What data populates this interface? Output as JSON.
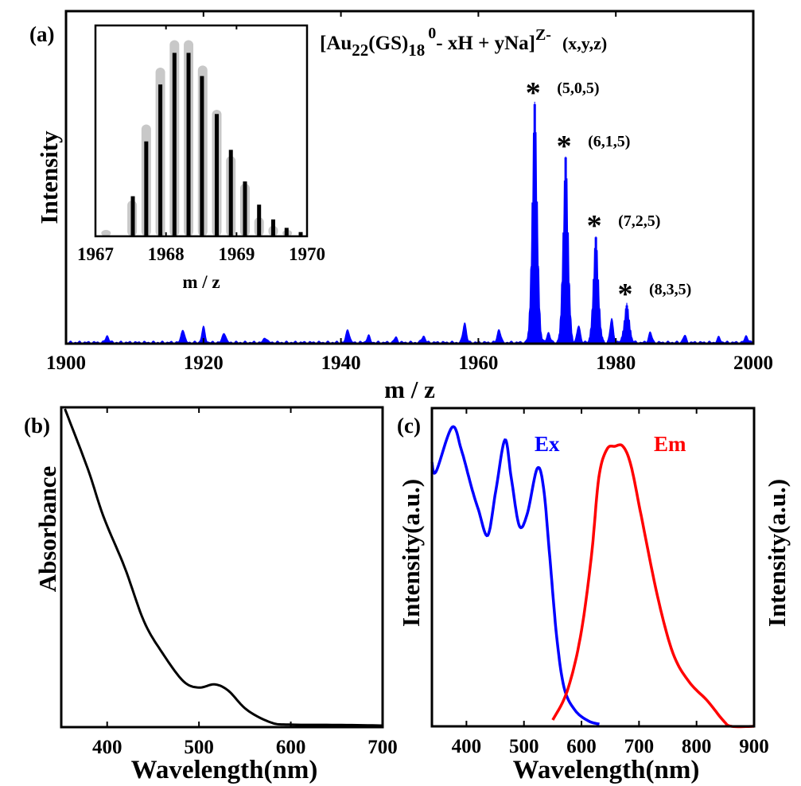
{
  "panels": {
    "a": "(a)",
    "b": "(b)",
    "c": "(c)"
  },
  "formula": {
    "open": "[Au",
    "sub1": "22",
    "mid": "(GS)",
    "sub2": "18",
    "sup1": "0",
    "rest": "- xH + yNa]",
    "sup2": "Z-",
    "tuple": "(x,y,z)"
  },
  "colors": {
    "ms": "#0000ff",
    "ex": "#0000ff",
    "em": "#ff0000",
    "inset_sim": "#c8c8c8",
    "inset_exp": "#000000",
    "abs": "#000000"
  },
  "chart_data": [
    {
      "id": "a",
      "type": "area",
      "xlabel": "m / z",
      "ylabel": "Intensity",
      "xlim": [
        1900,
        2000
      ],
      "xticks": [
        "1900",
        "1920",
        "1940",
        "1960",
        "1980",
        "2000"
      ],
      "grid": false,
      "peaks": [
        {
          "mz": 1968.2,
          "intensity": 0.72,
          "label": "(5,0,5)"
        },
        {
          "mz": 1972.7,
          "intensity": 0.56,
          "label": "(6,1,5)"
        },
        {
          "mz": 1977.1,
          "intensity": 0.32,
          "label": "(7,2,5)"
        },
        {
          "mz": 1981.6,
          "intensity": 0.115,
          "label": "(8,3,5)"
        }
      ],
      "minor_peaks": [
        {
          "mz": 1906,
          "intensity": 0.02
        },
        {
          "mz": 1917,
          "intensity": 0.04
        },
        {
          "mz": 1920,
          "intensity": 0.045
        },
        {
          "mz": 1923,
          "intensity": 0.03
        },
        {
          "mz": 1929,
          "intensity": 0.015
        },
        {
          "mz": 1941,
          "intensity": 0.04
        },
        {
          "mz": 1944,
          "intensity": 0.02
        },
        {
          "mz": 1948,
          "intensity": 0.015
        },
        {
          "mz": 1952,
          "intensity": 0.02
        },
        {
          "mz": 1958,
          "intensity": 0.06
        },
        {
          "mz": 1963,
          "intensity": 0.04
        },
        {
          "mz": 1970.2,
          "intensity": 0.03
        },
        {
          "mz": 1974.6,
          "intensity": 0.05
        },
        {
          "mz": 1979.4,
          "intensity": 0.07
        },
        {
          "mz": 1985,
          "intensity": 0.03
        },
        {
          "mz": 1990,
          "intensity": 0.02
        },
        {
          "mz": 1995,
          "intensity": 0.015
        },
        {
          "mz": 1999,
          "intensity": 0.02
        }
      ]
    },
    {
      "id": "a-inset",
      "type": "bar",
      "xlabel": "m / z",
      "xlim": [
        1967,
        1970
      ],
      "xticks": [
        "1967",
        "1968",
        "1969",
        "1970"
      ],
      "experimental": {
        "x": [
          1967.53,
          1967.72,
          1967.92,
          1968.12,
          1968.32,
          1968.51,
          1968.72,
          1968.92,
          1969.12,
          1969.32,
          1969.52,
          1969.71,
          1969.91
        ],
        "y": [
          0.19,
          0.45,
          0.72,
          0.87,
          0.87,
          0.76,
          0.58,
          0.41,
          0.26,
          0.15,
          0.08,
          0.04,
          0.02
        ]
      },
      "simulated": {
        "x": [
          1967.15,
          1967.52,
          1967.72,
          1967.92,
          1968.12,
          1968.32,
          1968.52,
          1968.72,
          1968.92,
          1969.12,
          1969.32,
          1969.52,
          1969.72
        ],
        "y": [
          0.03,
          0.17,
          0.53,
          0.8,
          0.93,
          0.93,
          0.81,
          0.6,
          0.38,
          0.25,
          0.09,
          0.05,
          0.03
        ]
      }
    },
    {
      "id": "b",
      "type": "line",
      "xlabel": "Wavelength(nm)",
      "ylabel": "Absorbance",
      "xlim": [
        350,
        700
      ],
      "xticks": [
        "400",
        "500",
        "600",
        "700"
      ],
      "x": [
        354,
        379,
        396,
        419,
        440,
        460,
        483,
        500,
        517,
        532,
        552,
        578,
        598,
        650,
        700
      ],
      "y": [
        1.0,
        0.81,
        0.66,
        0.5,
        0.33,
        0.23,
        0.14,
        0.12,
        0.13,
        0.11,
        0.05,
        0.01,
        0.003,
        0.002,
        0.0
      ]
    },
    {
      "id": "c",
      "type": "line",
      "xlabel": "Wavelength(nm)",
      "ylabel": "Intensity(a.u.)",
      "ylabel_right": "Intensity(a.u.)",
      "xlim": [
        340,
        900
      ],
      "xticks": [
        "400",
        "500",
        "600",
        "700",
        "800",
        "900"
      ],
      "series": [
        {
          "name": "Ex",
          "x": [
            340,
            347,
            375,
            391,
            409,
            421,
            437,
            451,
            467,
            478,
            492,
            506,
            523,
            534,
            545,
            557,
            570,
            589,
            612,
            631
          ],
          "y": [
            0.83,
            0.8,
            0.94,
            0.87,
            0.75,
            0.68,
            0.6,
            0.74,
            0.9,
            0.78,
            0.63,
            0.67,
            0.81,
            0.75,
            0.53,
            0.28,
            0.12,
            0.05,
            0.017,
            0.007
          ]
        },
        {
          "name": "Em",
          "x": [
            550,
            575,
            598,
            617,
            630,
            644,
            658,
            672,
            686,
            704,
            732,
            759,
            787,
            819,
            847,
            861,
            900
          ],
          "y": [
            0.02,
            0.11,
            0.28,
            0.53,
            0.78,
            0.87,
            0.88,
            0.88,
            0.82,
            0.66,
            0.41,
            0.23,
            0.14,
            0.08,
            0.017,
            0.0,
            0.0
          ]
        }
      ]
    }
  ]
}
